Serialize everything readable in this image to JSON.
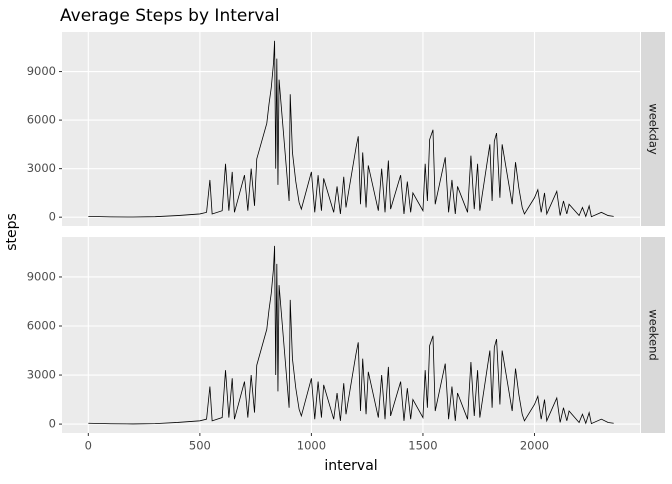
{
  "chart_data": {
    "type": "line",
    "title": "Average Steps by Interval",
    "x_label": "interval",
    "y_label": "steps",
    "x": [
      0,
      100,
      200,
      300,
      400,
      500,
      530,
      545,
      555,
      600,
      615,
      630,
      645,
      655,
      700,
      715,
      730,
      745,
      755,
      800,
      810,
      820,
      830,
      835,
      840,
      845,
      850,
      855,
      900,
      905,
      915,
      930,
      945,
      955,
      1000,
      1015,
      1030,
      1045,
      1055,
      1100,
      1115,
      1130,
      1145,
      1155,
      1200,
      1210,
      1220,
      1230,
      1245,
      1255,
      1300,
      1315,
      1330,
      1345,
      1355,
      1400,
      1415,
      1430,
      1445,
      1455,
      1500,
      1510,
      1520,
      1530,
      1545,
      1555,
      1600,
      1615,
      1630,
      1645,
      1655,
      1700,
      1715,
      1730,
      1745,
      1755,
      1800,
      1810,
      1820,
      1830,
      1845,
      1855,
      1900,
      1915,
      1930,
      1945,
      1955,
      2000,
      2015,
      2030,
      2045,
      2055,
      2100,
      2115,
      2130,
      2145,
      2155,
      2200,
      2215,
      2230,
      2245,
      2255,
      2300,
      2330,
      2355
    ],
    "series": [
      {
        "name": "weekday",
        "color": "#000000",
        "values": [
          50,
          20,
          10,
          30,
          100,
          200,
          300,
          2300,
          200,
          400,
          3300,
          400,
          2800,
          300,
          2600,
          400,
          3000,
          700,
          3600,
          5800,
          7000,
          8000,
          9500,
          10900,
          3000,
          9800,
          2000,
          8500,
          1000,
          7600,
          4000,
          2200,
          900,
          500,
          2800,
          300,
          2600,
          400,
          2400,
          300,
          1900,
          200,
          2500,
          600,
          4300,
          5000,
          800,
          4000,
          600,
          3200,
          400,
          3000,
          300,
          3500,
          500,
          2600,
          200,
          2200,
          300,
          1500,
          400,
          3300,
          1000,
          4800,
          5400,
          800,
          3700,
          300,
          2300,
          200,
          1900,
          300,
          3800,
          500,
          3300,
          400,
          4500,
          1000,
          4700,
          5200,
          1200,
          4500,
          800,
          3400,
          1800,
          600,
          200,
          1200,
          1700,
          300,
          1500,
          200,
          1600,
          100,
          1000,
          200,
          800,
          100,
          600,
          50,
          700,
          30,
          300,
          100,
          50
        ]
      },
      {
        "name": "weekend",
        "color": "#000000",
        "values": [
          50,
          20,
          10,
          30,
          100,
          200,
          300,
          2300,
          200,
          400,
          3300,
          400,
          2800,
          300,
          2600,
          400,
          3000,
          700,
          3600,
          5800,
          7000,
          8000,
          9500,
          10900,
          3000,
          9800,
          2000,
          8500,
          1000,
          7600,
          4000,
          2200,
          900,
          500,
          2800,
          300,
          2600,
          400,
          2400,
          300,
          1900,
          200,
          2500,
          600,
          4300,
          5000,
          800,
          4000,
          600,
          3200,
          400,
          3000,
          300,
          3500,
          500,
          2600,
          200,
          2200,
          300,
          1500,
          400,
          3300,
          1000,
          4800,
          5400,
          800,
          3700,
          300,
          2300,
          200,
          1900,
          300,
          3800,
          500,
          3300,
          400,
          4500,
          1000,
          4700,
          5200,
          1200,
          4500,
          800,
          3400,
          1800,
          600,
          200,
          1200,
          1700,
          300,
          1500,
          200,
          1600,
          100,
          1000,
          200,
          800,
          100,
          600,
          50,
          700,
          30,
          300,
          100,
          50
        ]
      }
    ],
    "xlim": [
      -118,
      2473
    ],
    "xticks": [
      0,
      500,
      1000,
      1500,
      2000
    ],
    "ylim": [
      -545,
      11445
    ],
    "yticks": [
      0,
      3000,
      6000,
      9000
    ],
    "grid": true
  }
}
